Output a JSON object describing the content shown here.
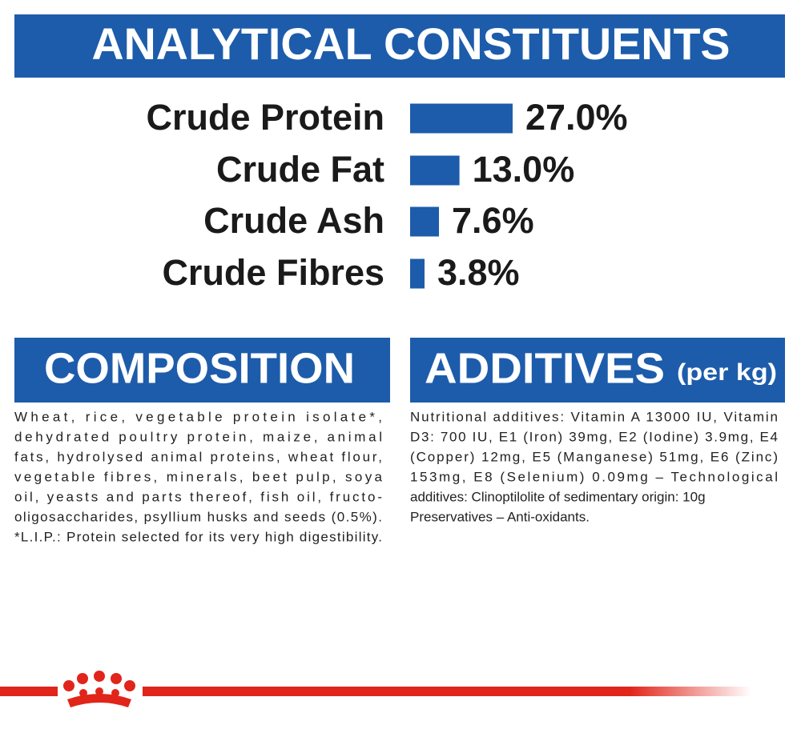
{
  "header": {
    "title": "ANALYTICAL CONSTITUENTS"
  },
  "chart_data": {
    "type": "bar",
    "orientation": "horizontal",
    "color": "#1d5cab",
    "categories": [
      "Crude Protein",
      "Crude Fat",
      "Crude Ash",
      "Crude Fibres"
    ],
    "values": [
      27,
      13,
      7.6,
      3.8
    ],
    "value_labels": [
      "27.0%",
      "13.0%",
      "7.6%",
      "3.8%"
    ]
  },
  "composition": {
    "title": "COMPOSITION",
    "lines": [
      "Wheat, rice, vegetable protein isolate*,",
      "dehydrated poultry protein, maize, animal",
      "fats, hydrolysed animal proteins, wheat flour,",
      "vegetable fibres, minerals, beet pulp, soya",
      "oil, yeasts and parts thereof, fish oil, fructo-",
      "oligosaccharides, psyllium husks and seeds (0.5%).",
      "*L.I.P.: Protein selected for its very high digestibility."
    ]
  },
  "additives": {
    "title": "ADDITIVES",
    "subtitle": "(per kg)",
    "lines": [
      "Nutritional additives: Vitamin A 13000 IU, Vitamin",
      "D3: 700 IU, E1 (Iron) 39mg, E2 (Iodine) 3.9mg, E4",
      "(Copper) 12mg, E5 (Manganese) 51mg, E6 (Zinc)",
      "153mg, E8 (Selenium) 0.09mg – Technological",
      "additives: Clinoptilolite of sedimentary origin: 10g",
      "Preservatives – Anti-oxidants."
    ]
  }
}
